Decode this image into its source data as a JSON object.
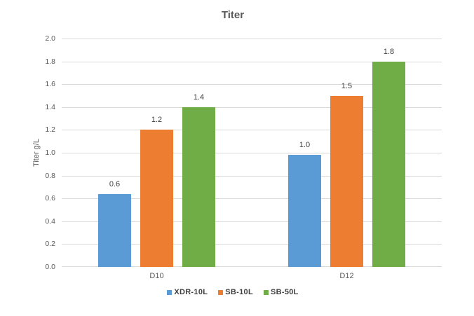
{
  "chart_data": {
    "type": "bar",
    "title": "Titer",
    "xlabel": "",
    "ylabel": "Titer g/L",
    "categories": [
      "D10",
      "D12"
    ],
    "series": [
      {
        "name": "XDR-10L",
        "color": "#5B9BD5",
        "values": [
          0.64,
          0.98
        ],
        "labels": [
          "0.6",
          "1.0"
        ]
      },
      {
        "name": "SB-10L",
        "color": "#ED7D31",
        "values": [
          1.2,
          1.5
        ],
        "labels": [
          "1.2",
          "1.5"
        ]
      },
      {
        "name": "SB-50L",
        "color": "#70AD47",
        "values": [
          1.4,
          1.8
        ],
        "labels": [
          "1.4",
          "1.8"
        ]
      }
    ],
    "ylim": [
      0,
      2.0
    ],
    "ytick_step": 0.2,
    "ytick_decimals": 1,
    "grid": true,
    "legend_position": "bottom"
  },
  "style": {
    "background": "#ffffff",
    "title_color": "#595959",
    "tick_color": "#595959",
    "data_label_color": "#404040",
    "gridline_color": "#d9d9d9"
  }
}
